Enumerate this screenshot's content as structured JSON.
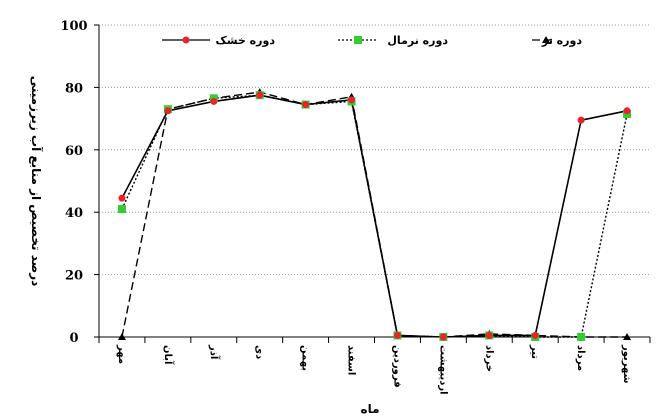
{
  "chart_data": {
    "type": "line",
    "title": "",
    "xlabel": "ماه",
    "ylabel": "درصد تخصیص از منابع آب زیرزمینی",
    "ylim": [
      0,
      100
    ],
    "yticks": [
      "0",
      "20",
      "40",
      "60",
      "80",
      "100"
    ],
    "grid": "horizontal dotted",
    "legend_position": "top",
    "categories": [
      "مهر",
      "آبان",
      "آذر",
      "دی",
      "بهمن",
      "اسفند",
      "فروردین",
      "اردیبهشت",
      "خرداد",
      "تیر",
      "مرداد",
      "شهریور"
    ],
    "series": [
      {
        "name": "دوره خشک",
        "color": "#e8242a",
        "marker": "circle",
        "dash": "",
        "values": [
          44.5,
          72.5,
          75.5,
          77.5,
          74.5,
          76.0,
          0.5,
          0.0,
          0.5,
          0.5,
          69.5,
          72.5
        ]
      },
      {
        "name": "دوره نرمال",
        "color": "#33cc33",
        "marker": "square",
        "dash": "2,2",
        "values": [
          41.0,
          73.0,
          76.5,
          77.5,
          74.5,
          75.5,
          0.5,
          0.0,
          0.5,
          0.0,
          0.0,
          71.5
        ]
      },
      {
        "name": "دوره تر",
        "color": "#000000",
        "marker": "triangle",
        "dash": "8,4",
        "values": [
          0.0,
          73.0,
          76.5,
          78.5,
          74.5,
          77.0,
          0.5,
          0.0,
          1.0,
          0.5,
          0.0,
          0.0
        ]
      }
    ]
  }
}
